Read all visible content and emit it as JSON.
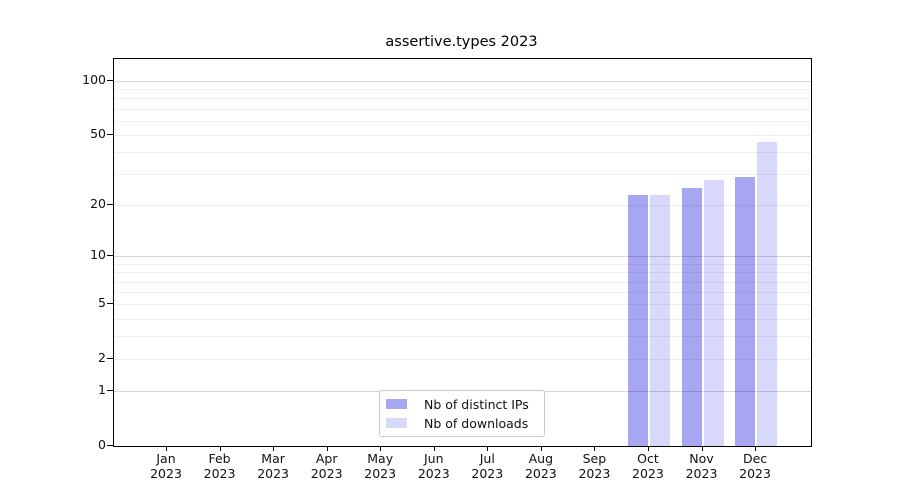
{
  "chart_data": {
    "type": "bar",
    "title": "assertive.types 2023",
    "categories": [
      "Jan",
      "Feb",
      "Mar",
      "Apr",
      "May",
      "Jun",
      "Jul",
      "Aug",
      "Sep",
      "Oct",
      "Nov",
      "Dec"
    ],
    "category_year": "2023",
    "series": [
      {
        "name": "Nb of distinct IPs",
        "color": "#a6a6f2",
        "values": [
          null,
          null,
          null,
          null,
          null,
          null,
          null,
          null,
          null,
          23,
          25,
          29
        ]
      },
      {
        "name": "Nb of downloads",
        "color": "#d8d8fa",
        "values": [
          null,
          null,
          null,
          null,
          null,
          null,
          null,
          null,
          null,
          23,
          28,
          46
        ]
      }
    ],
    "y_axis": {
      "scale": "log10(value+1)",
      "tick_values": [
        0,
        1,
        2,
        5,
        10,
        20,
        50,
        100
      ],
      "tick_labels": [
        "0",
        "1",
        "2",
        "5",
        "10",
        "20",
        "50",
        "100"
      ],
      "gridline_values": [
        1,
        2,
        3,
        4,
        5,
        6,
        7,
        8,
        9,
        10,
        20,
        30,
        40,
        50,
        60,
        70,
        80,
        90,
        100
      ],
      "major_gridline_values": [
        1,
        10,
        100
      ],
      "range_min": 0,
      "range_max_displayed": 100
    },
    "x_axis": {
      "label_line2": "2023"
    },
    "legend": {
      "position": "bottom-center",
      "entries": [
        "Nb of distinct IPs",
        "Nb of downloads"
      ]
    },
    "grid": "horizontal-only"
  }
}
